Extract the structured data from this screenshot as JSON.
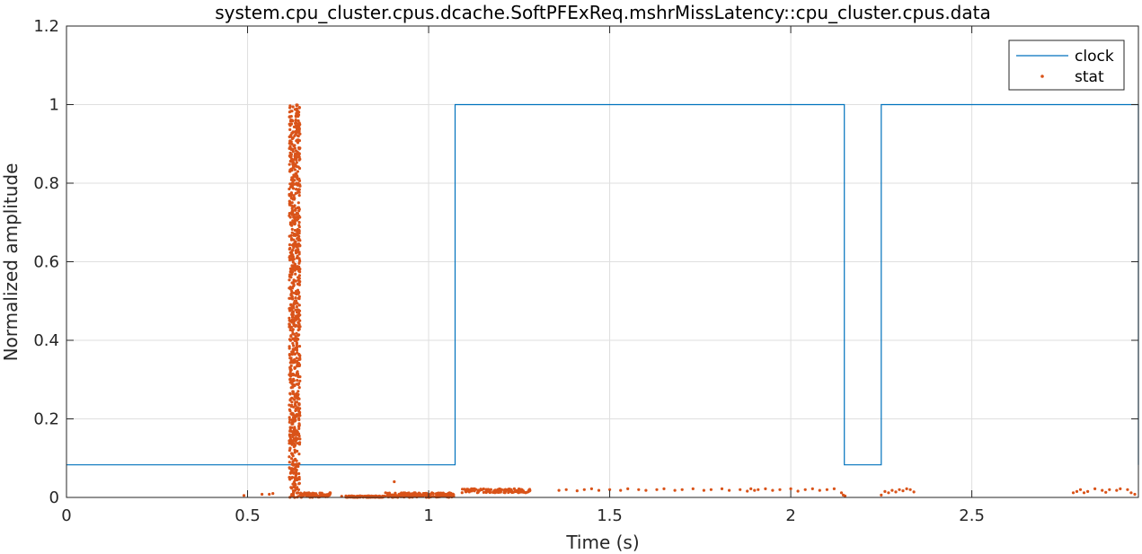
{
  "chart_data": {
    "type": "line",
    "title": "system.cpu_cluster.cpus.dcache.SoftPFExReq.mshrMissLatency::cpu_cluster.cpus.data",
    "xlabel": "Time (s)",
    "ylabel": "Normalized amplitude",
    "xlim": [
      0,
      2.96
    ],
    "ylim": [
      0,
      1.2
    ],
    "xticks": [
      0,
      0.5,
      1,
      1.5,
      2,
      2.5
    ],
    "xtick_labels": [
      "0",
      "0.5",
      "1",
      "1.5",
      "2",
      "2.5"
    ],
    "yticks": [
      0,
      0.2,
      0.4,
      0.6,
      0.8,
      1,
      1.2
    ],
    "ytick_labels": [
      "0",
      "0.2",
      "0.4",
      "0.6",
      "0.8",
      "1",
      "1.2"
    ],
    "grid": true,
    "legend_position": "top-right",
    "colors": {
      "clock": "#0072bd",
      "stat": "#d95319"
    },
    "series": [
      {
        "name": "clock",
        "style": "step-line",
        "x": [
          0,
          1.073,
          1.073,
          2.148,
          2.148,
          2.25,
          2.25,
          2.96,
          2.96
        ],
        "y": [
          0.083,
          0.083,
          1,
          1,
          0.083,
          0.083,
          1,
          1,
          0.083
        ]
      },
      {
        "name": "stat",
        "style": "points",
        "segments": [
          {
            "x_range": [
              0.615,
              0.645
            ],
            "y_range": [
              0,
              1.0
            ],
            "count": 900
          },
          {
            "x_range": [
              0.645,
              0.73
            ],
            "y_range": [
              0,
              0.012
            ],
            "count": 70
          },
          {
            "x_range": [
              0.77,
              0.88
            ],
            "y_range": [
              0,
              0.004
            ],
            "count": 120
          },
          {
            "x_range": [
              0.88,
              1.07
            ],
            "y_range": [
              0,
              0.012
            ],
            "count": 200
          },
          {
            "x_range": [
              1.09,
              1.28
            ],
            "y_range": [
              0.012,
              0.022
            ],
            "count": 120
          }
        ],
        "points": [
          {
            "x": 0.49,
            "y": 0.005
          },
          {
            "x": 0.54,
            "y": 0.008
          },
          {
            "x": 0.56,
            "y": 0.008
          },
          {
            "x": 0.57,
            "y": 0.01
          },
          {
            "x": 0.905,
            "y": 0.04
          },
          {
            "x": 0.76,
            "y": 0.003
          },
          {
            "x": 1.36,
            "y": 0.018
          },
          {
            "x": 1.38,
            "y": 0.02
          },
          {
            "x": 1.41,
            "y": 0.017
          },
          {
            "x": 1.43,
            "y": 0.02
          },
          {
            "x": 1.45,
            "y": 0.022
          },
          {
            "x": 1.47,
            "y": 0.018
          },
          {
            "x": 1.5,
            "y": 0.02
          },
          {
            "x": 1.53,
            "y": 0.018
          },
          {
            "x": 1.55,
            "y": 0.022
          },
          {
            "x": 1.58,
            "y": 0.02
          },
          {
            "x": 1.6,
            "y": 0.018
          },
          {
            "x": 1.63,
            "y": 0.02
          },
          {
            "x": 1.65,
            "y": 0.022
          },
          {
            "x": 1.68,
            "y": 0.018
          },
          {
            "x": 1.7,
            "y": 0.02
          },
          {
            "x": 1.73,
            "y": 0.022
          },
          {
            "x": 1.76,
            "y": 0.018
          },
          {
            "x": 1.78,
            "y": 0.02
          },
          {
            "x": 1.81,
            "y": 0.022
          },
          {
            "x": 1.83,
            "y": 0.018
          },
          {
            "x": 1.86,
            "y": 0.02
          },
          {
            "x": 1.88,
            "y": 0.016
          },
          {
            "x": 1.89,
            "y": 0.022
          },
          {
            "x": 1.9,
            "y": 0.018
          },
          {
            "x": 1.91,
            "y": 0.02
          },
          {
            "x": 1.93,
            "y": 0.022
          },
          {
            "x": 1.95,
            "y": 0.018
          },
          {
            "x": 1.97,
            "y": 0.02
          },
          {
            "x": 2.0,
            "y": 0.022
          },
          {
            "x": 2.02,
            "y": 0.016
          },
          {
            "x": 2.04,
            "y": 0.02
          },
          {
            "x": 2.06,
            "y": 0.022
          },
          {
            "x": 2.08,
            "y": 0.018
          },
          {
            "x": 2.1,
            "y": 0.02
          },
          {
            "x": 2.12,
            "y": 0.022
          },
          {
            "x": 2.14,
            "y": 0.012
          },
          {
            "x": 2.145,
            "y": 0.006
          },
          {
            "x": 2.15,
            "y": 0.004
          },
          {
            "x": 2.25,
            "y": 0.006
          },
          {
            "x": 2.26,
            "y": 0.015
          },
          {
            "x": 2.27,
            "y": 0.012
          },
          {
            "x": 2.28,
            "y": 0.018
          },
          {
            "x": 2.29,
            "y": 0.014
          },
          {
            "x": 2.3,
            "y": 0.02
          },
          {
            "x": 2.31,
            "y": 0.017
          },
          {
            "x": 2.32,
            "y": 0.022
          },
          {
            "x": 2.33,
            "y": 0.02
          },
          {
            "x": 2.34,
            "y": 0.014
          },
          {
            "x": 2.78,
            "y": 0.012
          },
          {
            "x": 2.79,
            "y": 0.015
          },
          {
            "x": 2.8,
            "y": 0.02
          },
          {
            "x": 2.81,
            "y": 0.012
          },
          {
            "x": 2.82,
            "y": 0.015
          },
          {
            "x": 2.84,
            "y": 0.022
          },
          {
            "x": 2.86,
            "y": 0.018
          },
          {
            "x": 2.87,
            "y": 0.013
          },
          {
            "x": 2.88,
            "y": 0.02
          },
          {
            "x": 2.9,
            "y": 0.018
          },
          {
            "x": 2.91,
            "y": 0.022
          },
          {
            "x": 2.93,
            "y": 0.02
          },
          {
            "x": 2.94,
            "y": 0.012
          },
          {
            "x": 2.95,
            "y": 0.008
          }
        ]
      }
    ]
  }
}
